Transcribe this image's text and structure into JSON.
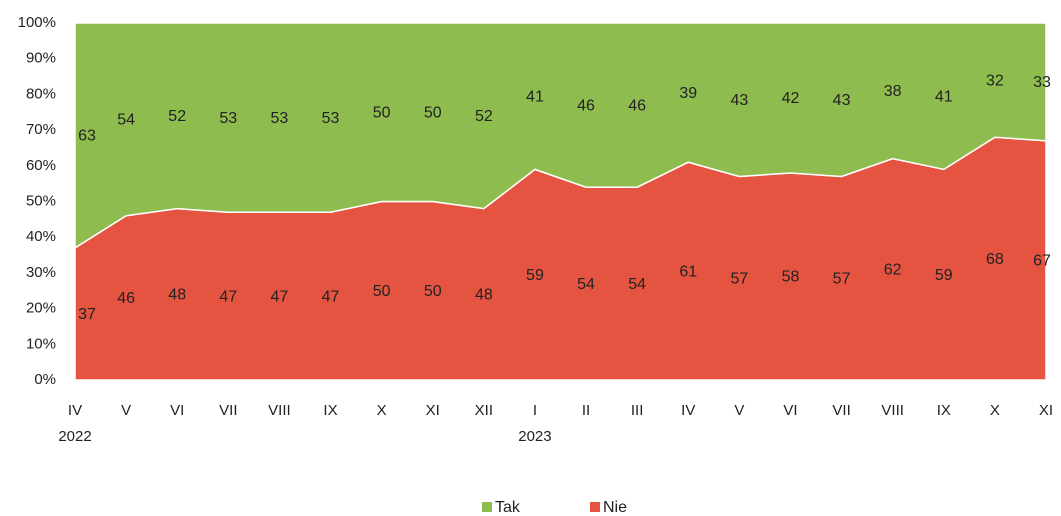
{
  "chart_data": {
    "type": "stacked_area",
    "categories": [
      "IV",
      "V",
      "VI",
      "VII",
      "VIII",
      "IX",
      "X",
      "XI",
      "XII",
      "I",
      "II",
      "III",
      "IV",
      "V",
      "VI",
      "VII",
      "VIII",
      "IX",
      "X",
      "XI"
    ],
    "category_years": [
      "2022",
      null,
      null,
      null,
      null,
      null,
      null,
      null,
      null,
      "2023",
      null,
      null,
      null,
      null,
      null,
      null,
      null,
      null,
      null,
      null
    ],
    "series": [
      {
        "name": "Nie",
        "color": "#e55441",
        "values": [
          37,
          46,
          48,
          47,
          47,
          47,
          50,
          50,
          48,
          59,
          54,
          54,
          61,
          57,
          58,
          57,
          62,
          59,
          68,
          67
        ]
      },
      {
        "name": "Tak",
        "color": "#8fbc4f",
        "values": [
          63,
          54,
          52,
          53,
          53,
          53,
          50,
          50,
          52,
          41,
          46,
          46,
          39,
          43,
          42,
          43,
          38,
          41,
          32,
          33
        ]
      }
    ],
    "ylim": [
      0,
      100
    ],
    "yticks": [
      {
        "value": 0,
        "label": "0%"
      },
      {
        "value": 10,
        "label": "10%"
      },
      {
        "value": 20,
        "label": "20%"
      },
      {
        "value": 30,
        "label": "30%"
      },
      {
        "value": 40,
        "label": "40%"
      },
      {
        "value": 50,
        "label": "50%"
      },
      {
        "value": 60,
        "label": "60%"
      },
      {
        "value": 70,
        "label": "70%"
      },
      {
        "value": 80,
        "label": "80%"
      },
      {
        "value": 90,
        "label": "90%"
      },
      {
        "value": 100,
        "label": "100%"
      }
    ],
    "legend_order": [
      "Tak",
      "Nie"
    ]
  }
}
